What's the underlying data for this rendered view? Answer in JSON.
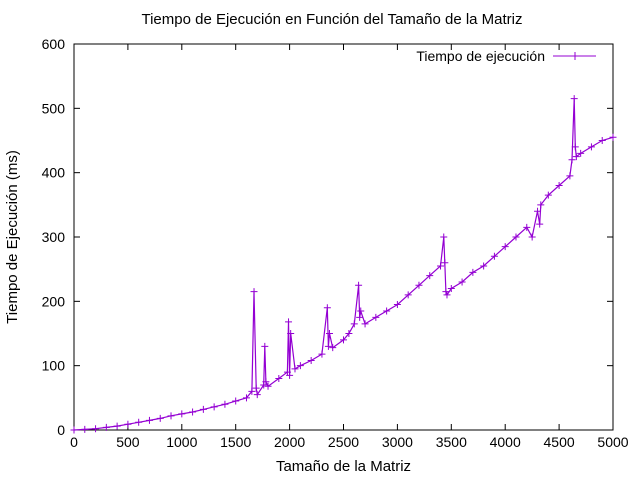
{
  "colors": {
    "series": "#9400d3",
    "axis": "#000000",
    "background": "#ffffff"
  },
  "chart_data": {
    "type": "line",
    "title": "Tiempo de Ejecución en Función del Tamaño de la Matriz",
    "xlabel": "Tamaño de la Matriz",
    "ylabel": "Tiempo de Ejecución (ms)",
    "xlim": [
      0,
      5000
    ],
    "ylim": [
      0,
      600
    ],
    "xticks": [
      0,
      500,
      1000,
      1500,
      2000,
      2500,
      3000,
      3500,
      4000,
      4500,
      5000
    ],
    "yticks": [
      0,
      100,
      200,
      300,
      400,
      500,
      600
    ],
    "grid": false,
    "legend_position": "top-right",
    "marker": "plus",
    "series": [
      {
        "name": "Tiempo de ejecución",
        "x": [
          0,
          100,
          200,
          300,
          400,
          500,
          600,
          700,
          800,
          900,
          1000,
          1100,
          1200,
          1300,
          1400,
          1500,
          1600,
          1650,
          1670,
          1690,
          1700,
          1760,
          1770,
          1780,
          1800,
          1900,
          1980,
          1990,
          2000,
          2010,
          2050,
          2100,
          2200,
          2300,
          2350,
          2360,
          2370,
          2400,
          2500,
          2550,
          2600,
          2640,
          2650,
          2660,
          2700,
          2800,
          2900,
          3000,
          3100,
          3200,
          3300,
          3400,
          3430,
          3440,
          3450,
          3460,
          3500,
          3600,
          3700,
          3800,
          3900,
          4000,
          4100,
          4200,
          4250,
          4300,
          4320,
          4330,
          4400,
          4500,
          4600,
          4620,
          4640,
          4650,
          4660,
          4700,
          4800,
          4900,
          5000
        ],
        "y": [
          0,
          1,
          2,
          4,
          6,
          9,
          12,
          15,
          18,
          22,
          25,
          28,
          32,
          36,
          40,
          45,
          50,
          60,
          215,
          65,
          55,
          70,
          130,
          75,
          68,
          80,
          90,
          168,
          85,
          150,
          95,
          100,
          108,
          118,
          190,
          130,
          150,
          128,
          140,
          150,
          165,
          225,
          175,
          185,
          165,
          175,
          185,
          195,
          210,
          225,
          240,
          255,
          300,
          260,
          215,
          210,
          220,
          230,
          245,
          255,
          270,
          285,
          300,
          315,
          300,
          340,
          320,
          350,
          365,
          380,
          395,
          420,
          515,
          440,
          425,
          430,
          440,
          450,
          455
        ]
      }
    ]
  }
}
